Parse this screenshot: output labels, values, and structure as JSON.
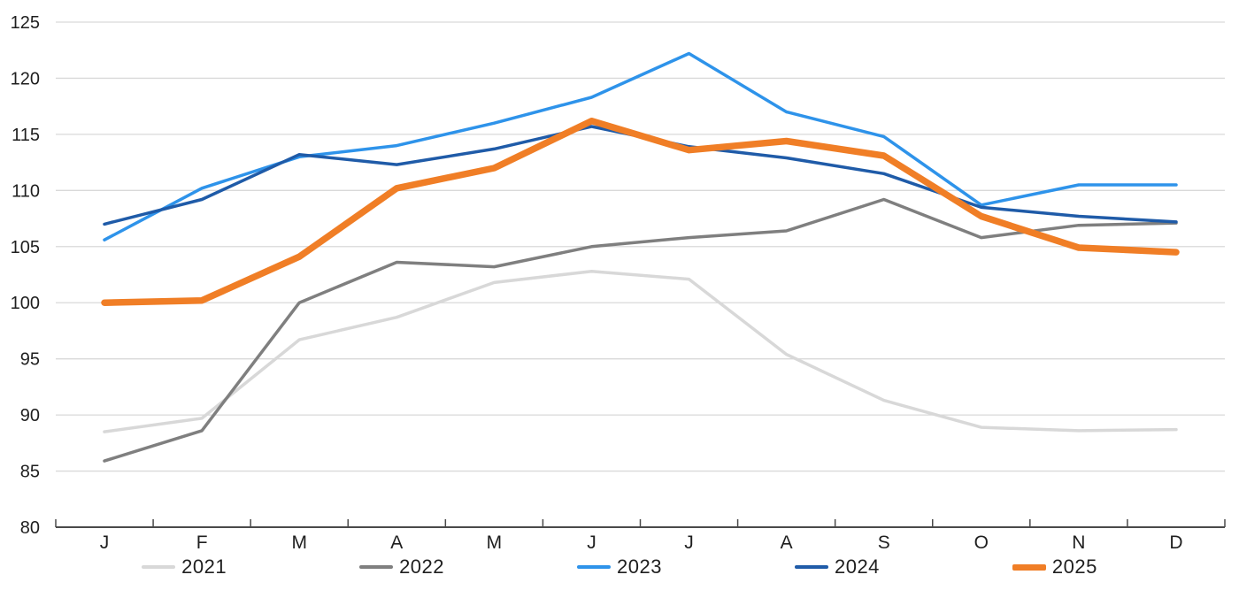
{
  "chart_data": {
    "type": "line",
    "title": "",
    "xlabel": "",
    "ylabel": "",
    "categories": [
      "J",
      "F",
      "M",
      "A",
      "M",
      "J",
      "J",
      "A",
      "S",
      "O",
      "N",
      "D"
    ],
    "y_axis": {
      "min": 80,
      "max": 125,
      "step": 5,
      "tick_labels": [
        "80",
        "85",
        "90",
        "95",
        "100",
        "105",
        "110",
        "115",
        "120",
        "125"
      ]
    },
    "grid": true,
    "legend_position": "bottom",
    "colors": {
      "gridline": "#D9D9D9",
      "axis": "#4a4a4a",
      "tick_text": "#1f1f1f"
    },
    "series": [
      {
        "name": "2021",
        "color": "#D8D8D8",
        "width": 3.5,
        "values": [
          88.5,
          89.7,
          96.7,
          98.7,
          101.8,
          102.8,
          102.1,
          95.4,
          91.3,
          88.9,
          88.6,
          88.7
        ]
      },
      {
        "name": "2022",
        "color": "#7F7F7F",
        "width": 3.5,
        "values": [
          85.9,
          88.6,
          100.0,
          103.6,
          103.2,
          105.0,
          105.8,
          106.4,
          109.2,
          105.8,
          106.9,
          107.1
        ]
      },
      {
        "name": "2023",
        "color": "#2E93EA",
        "width": 3.5,
        "values": [
          105.6,
          110.2,
          113.0,
          114.0,
          116.0,
          118.3,
          122.2,
          117.0,
          114.8,
          108.7,
          110.5,
          110.5
        ]
      },
      {
        "name": "2024",
        "color": "#1F5BA8",
        "width": 3.5,
        "values": [
          107.0,
          109.2,
          113.2,
          112.3,
          113.7,
          115.7,
          113.9,
          112.9,
          111.5,
          108.5,
          107.7,
          107.2
        ]
      },
      {
        "name": "2025",
        "color": "#F07E26",
        "width": 7.5,
        "values": [
          100.0,
          100.2,
          104.1,
          110.2,
          112.0,
          116.2,
          113.6,
          114.4,
          113.1,
          107.7,
          104.9,
          104.5
        ]
      }
    ]
  }
}
